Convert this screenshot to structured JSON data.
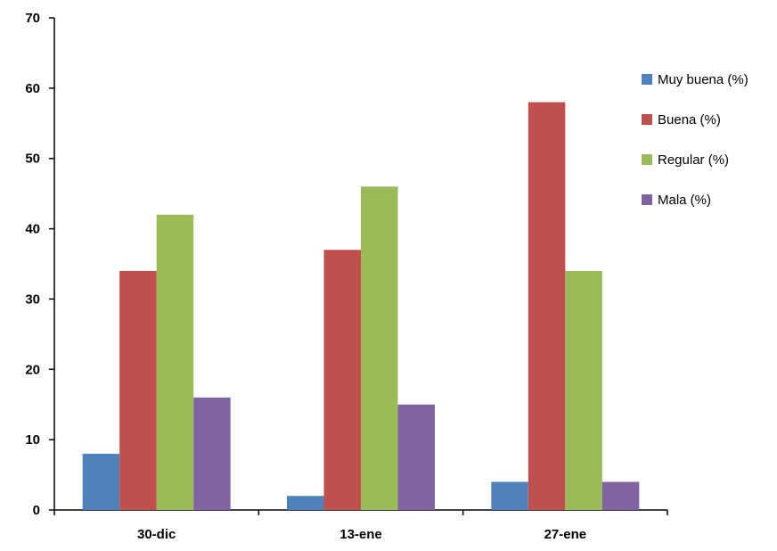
{
  "chart_data": {
    "type": "bar",
    "categories": [
      "30-dic",
      "13-ene",
      "27-ene"
    ],
    "series": [
      {
        "name": "Muy buena (%)",
        "color": "#4F81BD",
        "values": [
          8,
          2,
          4
        ]
      },
      {
        "name": "Buena (%)",
        "color": "#C0504D",
        "values": [
          34,
          37,
          58
        ]
      },
      {
        "name": "Regular (%)",
        "color": "#9BBB59",
        "values": [
          42,
          46,
          34
        ]
      },
      {
        "name": "Mala (%)",
        "color": "#8064A2",
        "values": [
          16,
          15,
          4
        ]
      }
    ],
    "ylim": [
      0,
      70
    ],
    "yticks": [
      "0",
      "10",
      "20",
      "30",
      "40",
      "50",
      "60",
      "70"
    ],
    "grid": false,
    "legend_position": "right"
  }
}
